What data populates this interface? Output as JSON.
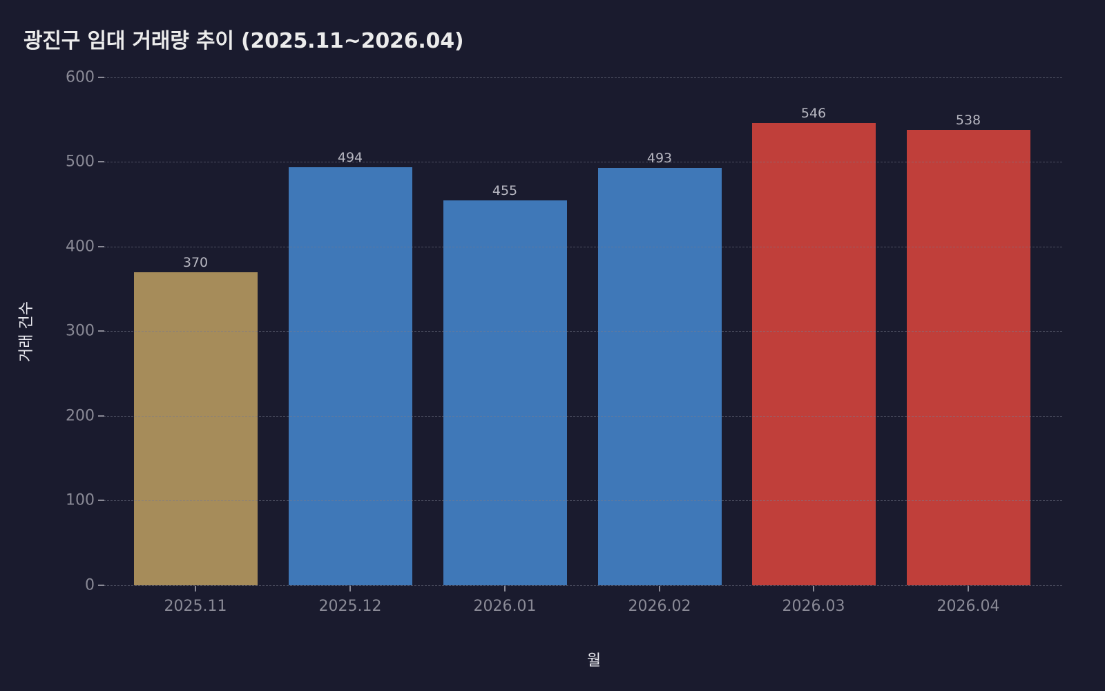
{
  "title": "광진구 임대 거래량 추이 (2025.11~2026.04)",
  "colors": {
    "background": "#1a1b2e",
    "past": "#a68c5a",
    "normal": "#3f78b8",
    "high": "#c03f3a",
    "grid": "#5a5c70",
    "tick_text": "#8a8a96",
    "value_text": "#b8b8c2",
    "title_text": "#ececec"
  },
  "axes": {
    "xlabel": "월",
    "ylabel": "거래 건수",
    "yticks": [
      "0",
      "100",
      "200",
      "300",
      "400",
      "500",
      "600"
    ]
  },
  "bars": [
    {
      "label": "2025.11",
      "value": 370,
      "value_label": "370",
      "color": "#a68c5a"
    },
    {
      "label": "2025.12",
      "value": 494,
      "value_label": "494",
      "color": "#3f78b8"
    },
    {
      "label": "2026.01",
      "value": 455,
      "value_label": "455",
      "color": "#3f78b8"
    },
    {
      "label": "2026.02",
      "value": 493,
      "value_label": "493",
      "color": "#3f78b8"
    },
    {
      "label": "2026.03",
      "value": 546,
      "value_label": "546",
      "color": "#c03f3a"
    },
    {
      "label": "2026.04",
      "value": 538,
      "value_label": "538",
      "color": "#c03f3a"
    }
  ],
  "chart_data": {
    "type": "bar",
    "title": "광진구 임대 거래량 추이 (2025.11~2026.04)",
    "categories": [
      "2025.11",
      "2025.12",
      "2026.01",
      "2026.02",
      "2026.03",
      "2026.04"
    ],
    "values": [
      370,
      494,
      455,
      493,
      546,
      538
    ],
    "bar_colors": [
      "#a68c5a",
      "#3f78b8",
      "#3f78b8",
      "#3f78b8",
      "#c03f3a",
      "#c03f3a"
    ],
    "xlabel": "월",
    "ylabel": "거래 건수",
    "ylim": [
      0,
      600
    ],
    "yticks": [
      0,
      100,
      200,
      300,
      400,
      500,
      600
    ],
    "grid": "horizontal dashed",
    "data_labels": true,
    "legend": null
  }
}
